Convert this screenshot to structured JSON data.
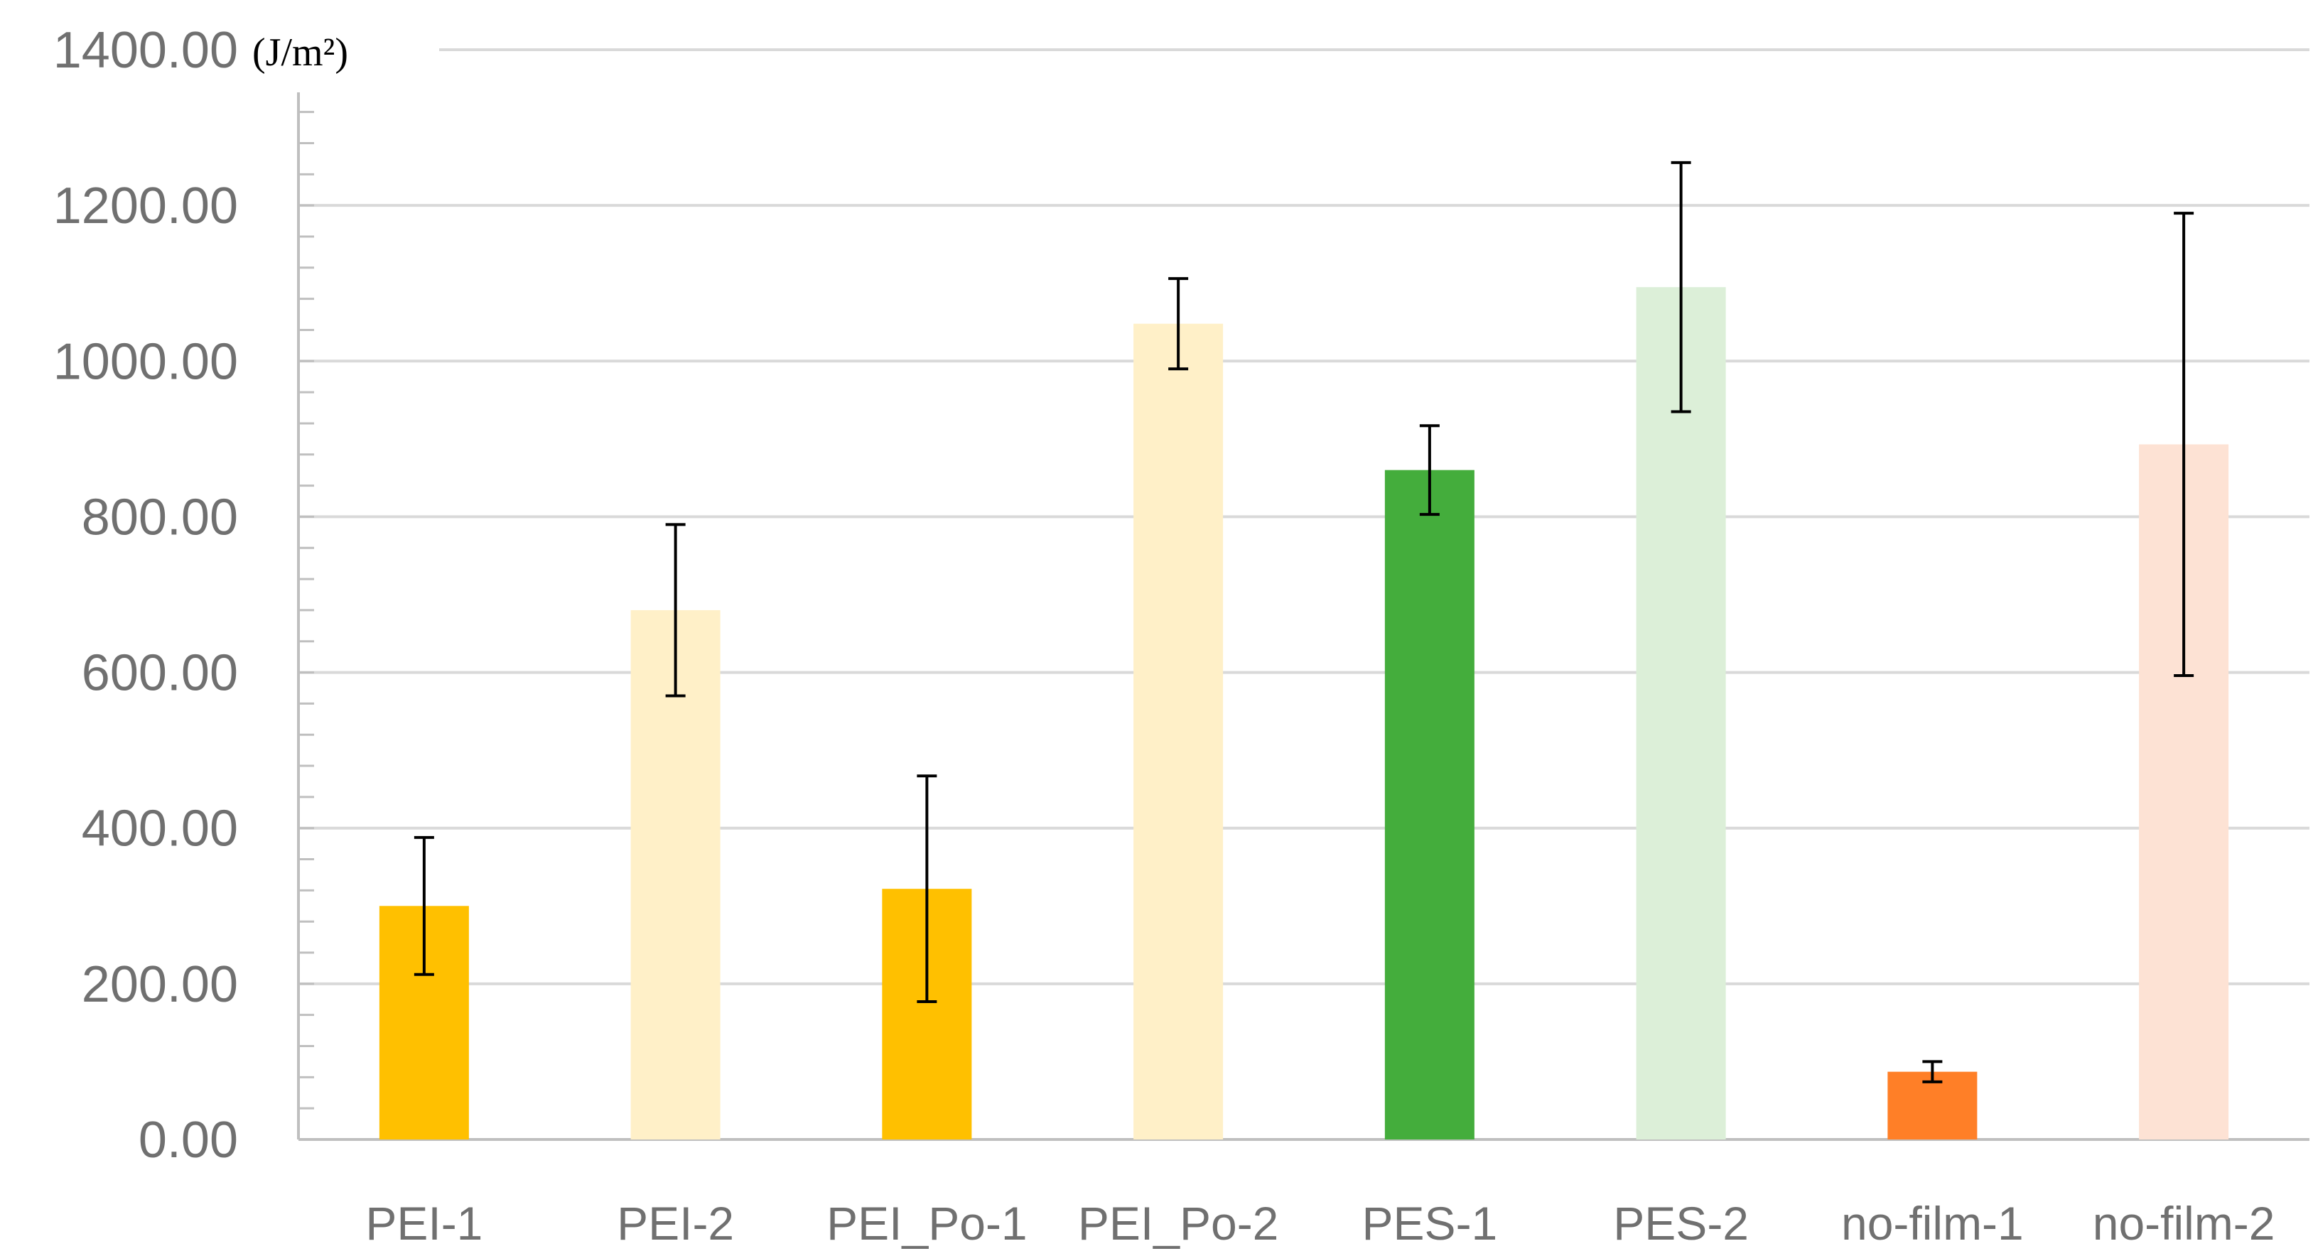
{
  "chart_data": {
    "type": "bar",
    "title": "",
    "xlabel": "",
    "ylabel": "",
    "unit": "(J/m²)",
    "ylim": [
      0,
      1400
    ],
    "yticks": [
      0,
      200,
      400,
      600,
      800,
      1000,
      1200,
      1400
    ],
    "ytick_labels": [
      "0.00",
      "200.00",
      "400.00",
      "600.00",
      "800.00",
      "1000.00",
      "1200.00",
      "1400.00"
    ],
    "minor_tick_step": 40,
    "grid": true,
    "categories": [
      "PEI-1",
      "PEI-2",
      "PEI_Po-1",
      "PEI_Po-2",
      "PES-1",
      "PES-2",
      "no-film-1",
      "no-film-2"
    ],
    "values": [
      300,
      680,
      322,
      1048,
      860,
      1095,
      87,
      893
    ],
    "errors": [
      88,
      110,
      145,
      58,
      57,
      160,
      13,
      297
    ],
    "colors": [
      "#ffc000",
      "#fff0c8",
      "#ffc000",
      "#fff0c8",
      "#44ad3c",
      "#dcefd8",
      "#ff7f27",
      "#fde2d4"
    ]
  }
}
